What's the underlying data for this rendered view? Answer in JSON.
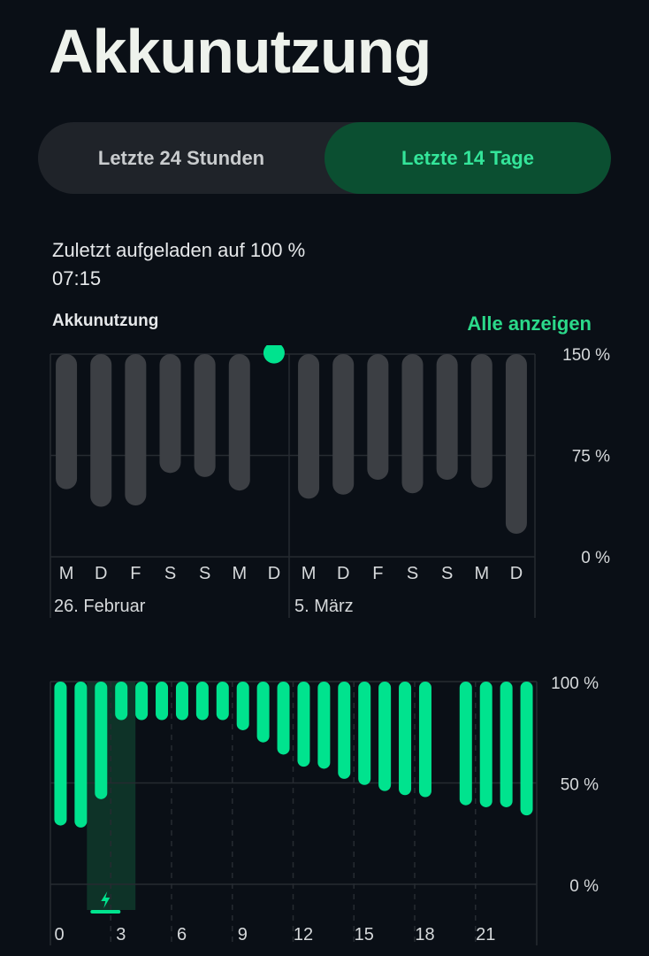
{
  "title": "Akkunutzung",
  "tabs": [
    {
      "label": "Letzte 24 Stunden",
      "active": false
    },
    {
      "label": "Letzte 14 Tage",
      "active": true
    }
  ],
  "last_charged": {
    "line1": "Zuletzt aufgeladen auf 100 %",
    "line2": "07:15"
  },
  "section": {
    "label": "Akkunutzung",
    "show_all": "Alle anzeigen"
  },
  "colors": {
    "accent": "#00e38e",
    "inactive_bar": "#3c3f44",
    "active_tab_bg": "#0b4f31"
  },
  "chart_data": [
    {
      "type": "bar",
      "categories": [
        "M",
        "D",
        "F",
        "S",
        "S",
        "M",
        "D",
        "M",
        "D",
        "F",
        "S",
        "S",
        "M",
        "D"
      ],
      "values": [
        50,
        37,
        38,
        62,
        59,
        49,
        143,
        43,
        46,
        57,
        47,
        57,
        51,
        17
      ],
      "highlighted_index": 6,
      "ylim": [
        0,
        150
      ],
      "yticks": [
        "150 %",
        "75 %",
        "0 %"
      ],
      "week_labels": [
        "26. Februar",
        "5. März"
      ]
    },
    {
      "type": "bar",
      "x": [
        0,
        1,
        2,
        3,
        4,
        5,
        6,
        7,
        8,
        9,
        10,
        11,
        12,
        13,
        14,
        15,
        16,
        17,
        18,
        19,
        20,
        21,
        22,
        23
      ],
      "values": [
        29,
        28,
        42,
        81,
        81,
        81,
        81,
        81,
        81,
        76,
        70,
        64,
        58,
        57,
        52,
        49,
        46,
        44,
        43,
        null,
        39,
        38,
        38,
        34
      ],
      "charging_hour": 2,
      "ylim": [
        0,
        100
      ],
      "yticks": [
        "100 %",
        "50 %",
        "0 %"
      ],
      "xticks": [
        "0",
        "3",
        "6",
        "9",
        "12",
        "15",
        "18",
        "21"
      ]
    }
  ]
}
